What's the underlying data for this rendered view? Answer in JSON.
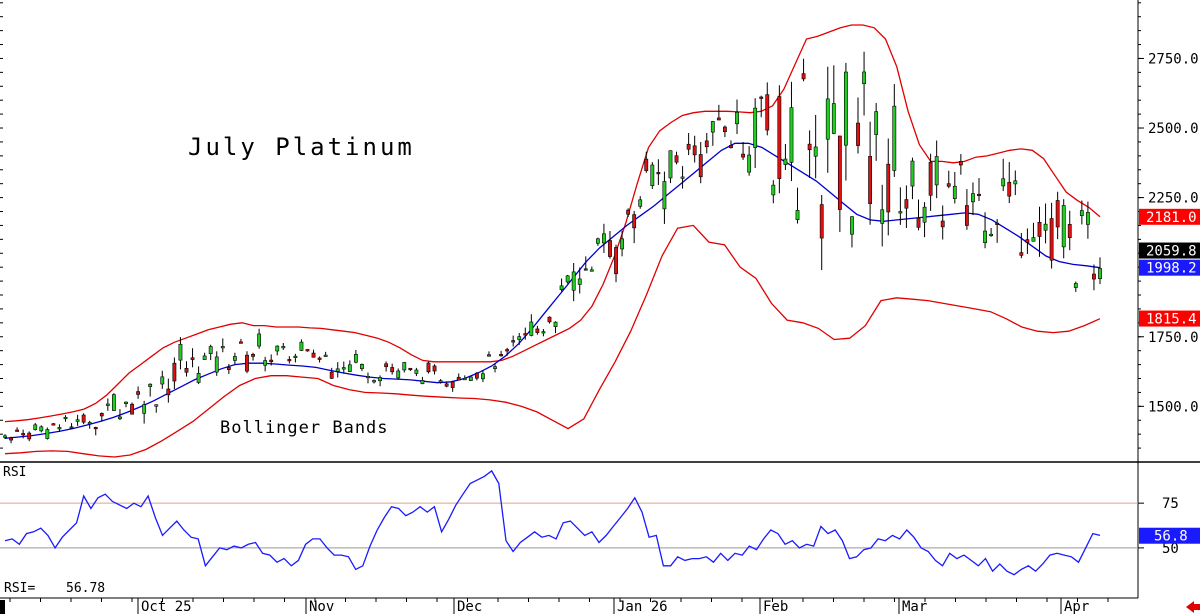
{
  "chart_data": [
    {
      "type": "candlestick",
      "title": "July Platinum",
      "annotation": "Bollinger Bands",
      "ylim": [
        1300,
        2960
      ],
      "yticks": [
        1500,
        1750,
        2000,
        2250,
        2500,
        2750
      ],
      "ytick_labels": [
        "1500.0",
        "1750.0",
        "2000.0",
        "2250.0",
        "2500.0",
        "2750.0"
      ],
      "x_labels": [
        "Oct 25",
        "Nov",
        "Dec",
        "Jan 26",
        "Feb",
        "Mar",
        "Apr"
      ],
      "label_boxes": [
        {
          "text": "2181.0",
          "value": 2181.0,
          "color": "#ff0000"
        },
        {
          "text": "2059.8",
          "value": 2059.8,
          "color": "#000000"
        },
        {
          "text": "1998.2",
          "value": 1998.2,
          "color": "#1a1aff"
        },
        {
          "text": "1815.4",
          "value": 1815.4,
          "color": "#ff0000"
        }
      ],
      "series": [
        {
          "type": "line",
          "role": "upper-band",
          "color": "#e00000",
          "values": [
            1445,
            1448,
            1452,
            1458,
            1465,
            1472,
            1480,
            1490,
            1510,
            1540,
            1580,
            1620,
            1650,
            1680,
            1710,
            1730,
            1745,
            1760,
            1775,
            1785,
            1795,
            1800,
            1790,
            1790,
            1785,
            1785,
            1785,
            1782,
            1780,
            1775,
            1770,
            1765,
            1755,
            1745,
            1730,
            1710,
            1685,
            1665,
            1660,
            1660,
            1660,
            1660,
            1660,
            1660,
            1665,
            1680,
            1700,
            1720,
            1740,
            1760,
            1780,
            1810,
            1860,
            1940,
            2040,
            2160,
            2300,
            2430,
            2490,
            2520,
            2545,
            2555,
            2560,
            2560,
            2560,
            2558,
            2555,
            2560,
            2580,
            2640,
            2730,
            2820,
            2830,
            2845,
            2860,
            2870,
            2870,
            2860,
            2820,
            2720,
            2560,
            2440,
            2380,
            2380,
            2375,
            2380,
            2395,
            2400,
            2410,
            2420,
            2425,
            2420,
            2390,
            2330,
            2270,
            2240,
            2215,
            2181
          ]
        },
        {
          "type": "line",
          "role": "middle-band",
          "color": "#0000cc",
          "values": [
            1385,
            1390,
            1395,
            1402,
            1410,
            1420,
            1432,
            1445,
            1460,
            1478,
            1498,
            1520,
            1545,
            1570,
            1595,
            1615,
            1635,
            1650,
            1655,
            1655,
            1652,
            1648,
            1645,
            1640,
            1630,
            1620,
            1612,
            1605,
            1600,
            1598,
            1595,
            1590,
            1585,
            1588,
            1600,
            1620,
            1645,
            1680,
            1725,
            1780,
            1840,
            1900,
            1960,
            2020,
            2070,
            2110,
            2150,
            2185,
            2220,
            2260,
            2300,
            2340,
            2380,
            2420,
            2445,
            2445,
            2430,
            2400,
            2370,
            2340,
            2310,
            2270,
            2230,
            2190,
            2170,
            2165,
            2170,
            2175,
            2180,
            2185,
            2190,
            2195,
            2190,
            2170,
            2140,
            2110,
            2075,
            2040,
            2020,
            2010,
            2005,
            1998
          ]
        },
        {
          "type": "line",
          "role": "lower-band",
          "color": "#e00000",
          "values": [
            1330,
            1333,
            1338,
            1340,
            1338,
            1330,
            1322,
            1318,
            1325,
            1345,
            1375,
            1410,
            1445,
            1490,
            1535,
            1575,
            1600,
            1610,
            1610,
            1605,
            1600,
            1575,
            1560,
            1550,
            1548,
            1545,
            1540,
            1536,
            1533,
            1530,
            1528,
            1523,
            1515,
            1500,
            1480,
            1450,
            1420,
            1455,
            1560,
            1660,
            1770,
            1900,
            2040,
            2140,
            2150,
            2090,
            2080,
            2000,
            1960,
            1870,
            1810,
            1800,
            1780,
            1740,
            1745,
            1790,
            1880,
            1890,
            1885,
            1880,
            1870,
            1860,
            1850,
            1840,
            1815,
            1785,
            1770,
            1765,
            1770,
            1790,
            1815
          ]
        }
      ]
    },
    {
      "type": "line",
      "title": "RSI",
      "ylim": [
        22,
        98
      ],
      "yticks": [
        50,
        75
      ],
      "ytick_labels": [
        "50",
        "75"
      ],
      "reference_lines": [
        {
          "value": 75,
          "color": "#e0a080"
        },
        {
          "value": 50,
          "color": "#999999"
        }
      ],
      "readout_label": "RSI=",
      "readout_value": "56.78",
      "label_box": {
        "text": "56.8",
        "value": 56.8,
        "color": "#1a1aff"
      },
      "series": [
        {
          "color": "#1a1aff",
          "values": [
            54,
            55,
            52,
            58,
            59,
            61,
            57,
            50,
            56,
            60,
            64,
            79,
            72,
            78,
            80,
            76,
            74,
            72,
            75,
            73,
            79,
            67,
            57,
            61,
            65,
            60,
            56,
            55,
            40,
            45,
            50,
            49,
            51,
            50,
            52,
            53,
            47,
            46,
            42,
            44,
            40,
            43,
            52,
            55,
            55,
            50,
            46,
            46,
            45,
            38,
            40,
            51,
            60,
            67,
            73,
            72,
            68,
            70,
            73,
            70,
            73,
            59,
            66,
            74,
            80,
            86,
            88,
            90,
            93,
            86,
            54,
            48,
            53,
            56,
            59,
            56,
            57,
            55,
            64,
            65,
            61,
            57,
            59,
            53,
            57,
            62,
            67,
            72,
            78,
            70,
            56,
            57,
            40,
            40,
            45,
            43,
            44,
            44,
            45,
            42,
            47,
            43,
            47,
            46,
            51,
            49,
            55,
            60,
            58,
            52,
            54,
            50,
            52,
            51,
            62,
            58,
            60,
            54,
            44,
            45,
            49,
            50,
            55,
            54,
            57,
            55,
            60,
            56,
            50,
            48,
            43,
            40,
            47,
            44,
            46,
            43,
            40,
            44,
            37,
            41,
            37,
            35,
            38,
            40,
            37,
            41,
            46,
            47,
            46,
            45,
            42,
            50,
            58,
            57
          ]
        }
      ]
    }
  ]
}
